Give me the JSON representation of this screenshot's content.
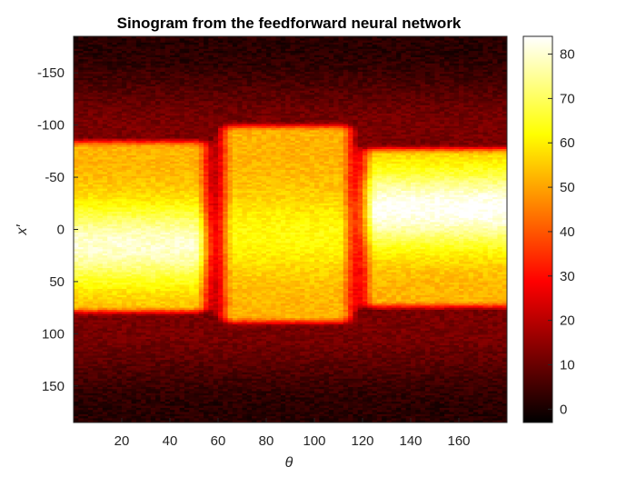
{
  "chart_data": {
    "type": "heatmap",
    "title": "Sinogram from the feedforward neural network",
    "xlabel": "θ",
    "ylabel": "x′",
    "xlim": [
      0,
      180
    ],
    "ylim": [
      -185,
      185
    ],
    "y_direction": "reversed",
    "x_ticks": [
      20,
      40,
      60,
      80,
      100,
      120,
      140,
      160
    ],
    "y_ticks": [
      -150,
      -100,
      -50,
      0,
      50,
      100,
      150
    ],
    "colormap": "hot",
    "colorbar": {
      "range": [
        -3,
        84
      ],
      "ticks": [
        0,
        10,
        20,
        30,
        40,
        50,
        60,
        70,
        80
      ]
    },
    "regions": [
      {
        "theta": [
          0,
          55
        ],
        "x_prime": [
          -85,
          80
        ],
        "peak": 80,
        "peak_x_prime": 15,
        "description_free": true
      },
      {
        "theta": [
          62,
          115
        ],
        "x_prime": [
          -100,
          90
        ],
        "peak": 62,
        "peak_x_prime": 5
      },
      {
        "theta": [
          120,
          180
        ],
        "x_prime": [
          -78,
          75
        ],
        "peak": 84,
        "peak_x_prime": -20
      }
    ],
    "background_level": 12,
    "colors": {
      "low": "#000000",
      "mid": "#ff0000",
      "high": "#ffff00",
      "max": "#ffffff"
    }
  }
}
